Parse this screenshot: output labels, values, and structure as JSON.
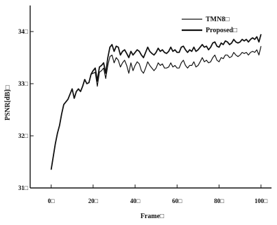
{
  "chart_data": {
    "type": "line",
    "title": "",
    "xlabel": "Frame□",
    "ylabel": "PSNR[dB]□",
    "xlim": [
      -10,
      105
    ],
    "ylim": [
      31,
      34.5
    ],
    "xticks": [
      0,
      20,
      40,
      60,
      80,
      100
    ],
    "xtick_labels": [
      "0□",
      "20□",
      "40□",
      "60□",
      "80□",
      "100□"
    ],
    "yticks": [
      31,
      32,
      33,
      34
    ],
    "ytick_labels": [
      "31□",
      "32□",
      "33□",
      "34□"
    ],
    "grid": false,
    "legend_position": "top-right",
    "colors": {
      "line": "#111111",
      "axis": "#111111",
      "background": "#ffffff"
    },
    "x": [
      0,
      1,
      2,
      3,
      4,
      5,
      6,
      7,
      8,
      9,
      10,
      11,
      12,
      13,
      14,
      15,
      16,
      17,
      18,
      19,
      20,
      21,
      22,
      23,
      24,
      25,
      26,
      27,
      28,
      29,
      30,
      31,
      32,
      33,
      34,
      35,
      36,
      37,
      38,
      39,
      40,
      41,
      42,
      43,
      44,
      45,
      46,
      47,
      48,
      49,
      50,
      51,
      52,
      53,
      54,
      55,
      56,
      57,
      58,
      59,
      60,
      61,
      62,
      63,
      64,
      65,
      66,
      67,
      68,
      69,
      70,
      71,
      72,
      73,
      74,
      75,
      76,
      77,
      78,
      79,
      80,
      81,
      82,
      83,
      84,
      85,
      86,
      87,
      88,
      89,
      90,
      91,
      92,
      93,
      94,
      95,
      96,
      97,
      98,
      99,
      100
    ],
    "series": [
      {
        "name": "TMN8□",
        "values": [
          31.35,
          31.6,
          31.85,
          32.05,
          32.2,
          32.42,
          32.6,
          32.65,
          32.7,
          32.8,
          32.9,
          32.72,
          32.85,
          32.9,
          32.85,
          32.95,
          33.08,
          33.0,
          33.02,
          33.18,
          33.2,
          33.22,
          32.95,
          33.22,
          33.25,
          33.3,
          33.1,
          33.35,
          33.52,
          33.55,
          33.4,
          33.5,
          33.45,
          33.32,
          33.4,
          33.45,
          33.35,
          33.2,
          33.4,
          33.25,
          33.35,
          33.42,
          33.38,
          33.25,
          33.2,
          33.3,
          33.42,
          33.35,
          33.3,
          33.25,
          33.3,
          33.4,
          33.35,
          33.38,
          33.3,
          33.3,
          33.32,
          33.4,
          33.32,
          33.35,
          33.3,
          33.3,
          33.4,
          33.45,
          33.35,
          33.3,
          33.35,
          33.35,
          33.42,
          33.32,
          33.35,
          33.42,
          33.5,
          33.42,
          33.45,
          33.4,
          33.42,
          33.5,
          33.55,
          33.45,
          33.42,
          33.5,
          33.48,
          33.55,
          33.55,
          33.5,
          33.52,
          33.6,
          33.55,
          33.52,
          33.55,
          33.6,
          33.58,
          33.6,
          33.55,
          33.6,
          33.62,
          33.6,
          33.65,
          33.55,
          33.72
        ]
      },
      {
        "name": "Proposed□",
        "values": [
          31.35,
          31.6,
          31.85,
          32.05,
          32.2,
          32.42,
          32.6,
          32.65,
          32.7,
          32.8,
          32.9,
          32.72,
          32.85,
          32.9,
          32.85,
          32.95,
          33.08,
          33.0,
          33.02,
          33.18,
          33.25,
          33.3,
          33.05,
          33.32,
          33.35,
          33.4,
          33.2,
          33.5,
          33.7,
          33.75,
          33.62,
          33.72,
          33.7,
          33.55,
          33.62,
          33.65,
          33.58,
          33.5,
          33.62,
          33.55,
          33.6,
          33.65,
          33.62,
          33.55,
          33.5,
          33.6,
          33.7,
          33.62,
          33.58,
          33.55,
          33.6,
          33.68,
          33.62,
          33.65,
          33.6,
          33.58,
          33.62,
          33.7,
          33.62,
          33.65,
          33.6,
          33.6,
          33.7,
          33.72,
          33.65,
          33.6,
          33.65,
          33.62,
          33.7,
          33.62,
          33.65,
          33.7,
          33.75,
          33.7,
          33.72,
          33.65,
          33.7,
          33.78,
          33.8,
          33.72,
          33.7,
          33.78,
          33.75,
          33.82,
          33.8,
          33.75,
          33.78,
          33.85,
          33.8,
          33.78,
          33.8,
          33.85,
          33.82,
          33.85,
          33.8,
          33.85,
          33.88,
          33.85,
          33.9,
          33.8,
          33.95
        ]
      }
    ]
  }
}
